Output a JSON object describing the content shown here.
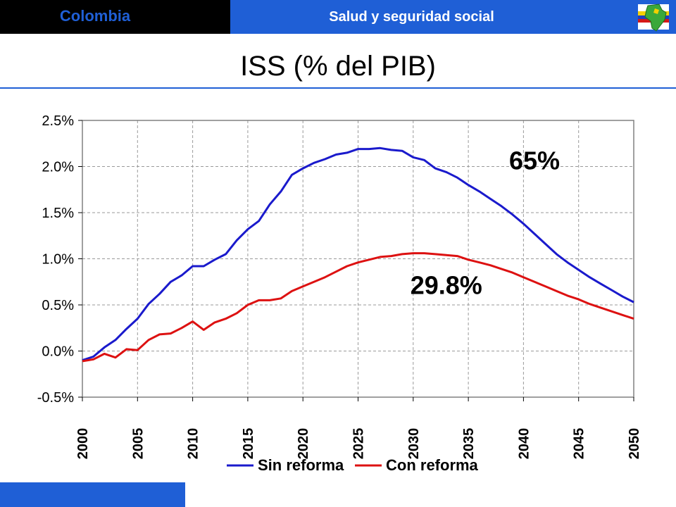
{
  "header": {
    "country": "Colombia",
    "section": "Salud y seguridad social"
  },
  "slide": {
    "title": "ISS (% del PIB)"
  },
  "colors": {
    "accent": "#1f5fd6",
    "sin_reforma": "#1a1acc",
    "con_reforma": "#dd1111"
  },
  "chart_data": {
    "type": "line",
    "title": "",
    "xlabel": "",
    "ylabel": "",
    "xlim": [
      2000,
      2050
    ],
    "ylim": [
      -0.5,
      2.5
    ],
    "x_ticks": [
      "2000",
      "2005",
      "2010",
      "2015",
      "2020",
      "2025",
      "2030",
      "2035",
      "2040",
      "2045",
      "2050"
    ],
    "y_ticks": [
      "-0.5%",
      "0.0%",
      "0.5%",
      "1.0%",
      "1.5%",
      "2.0%",
      "2.5%"
    ],
    "y_tick_values": [
      -0.5,
      0.0,
      0.5,
      1.0,
      1.5,
      2.0,
      2.5
    ],
    "grid": true,
    "legend_position": "bottom",
    "x": [
      2000,
      2001,
      2002,
      2003,
      2004,
      2005,
      2006,
      2007,
      2008,
      2009,
      2010,
      2011,
      2012,
      2013,
      2014,
      2015,
      2016,
      2017,
      2018,
      2019,
      2020,
      2021,
      2022,
      2023,
      2024,
      2025,
      2026,
      2027,
      2028,
      2029,
      2030,
      2031,
      2032,
      2033,
      2034,
      2035,
      2036,
      2037,
      2038,
      2039,
      2040,
      2041,
      2042,
      2043,
      2044,
      2045,
      2046,
      2047,
      2048,
      2049,
      2050
    ],
    "series": [
      {
        "name": "Sin reforma",
        "color": "#1a1acc",
        "values": [
          -0.1,
          -0.06,
          0.04,
          0.12,
          0.24,
          0.35,
          0.51,
          0.62,
          0.75,
          0.82,
          0.92,
          0.92,
          0.99,
          1.05,
          1.2,
          1.32,
          1.41,
          1.59,
          1.73,
          1.91,
          1.98,
          2.04,
          2.08,
          2.13,
          2.15,
          2.19,
          2.19,
          2.2,
          2.18,
          2.17,
          2.1,
          2.07,
          1.98,
          1.94,
          1.88,
          1.8,
          1.73,
          1.65,
          1.57,
          1.48,
          1.38,
          1.27,
          1.16,
          1.05,
          0.96,
          0.88,
          0.8,
          0.73,
          0.66,
          0.59,
          0.53
        ]
      },
      {
        "name": "Con reforma",
        "color": "#dd1111",
        "values": [
          -0.11,
          -0.09,
          -0.03,
          -0.07,
          0.02,
          0.01,
          0.12,
          0.18,
          0.19,
          0.25,
          0.32,
          0.23,
          0.31,
          0.35,
          0.41,
          0.5,
          0.55,
          0.55,
          0.57,
          0.65,
          0.7,
          0.75,
          0.8,
          0.86,
          0.92,
          0.96,
          0.99,
          1.02,
          1.03,
          1.05,
          1.06,
          1.06,
          1.05,
          1.04,
          1.03,
          0.99,
          0.96,
          0.93,
          0.89,
          0.85,
          0.8,
          0.75,
          0.7,
          0.65,
          0.6,
          0.56,
          0.51,
          0.47,
          0.43,
          0.39,
          0.35
        ]
      }
    ],
    "annotations": [
      {
        "text": "65%",
        "x": 2041,
        "y": 1.97
      },
      {
        "text": "29.8%",
        "x": 2033,
        "y": 0.62
      }
    ]
  }
}
